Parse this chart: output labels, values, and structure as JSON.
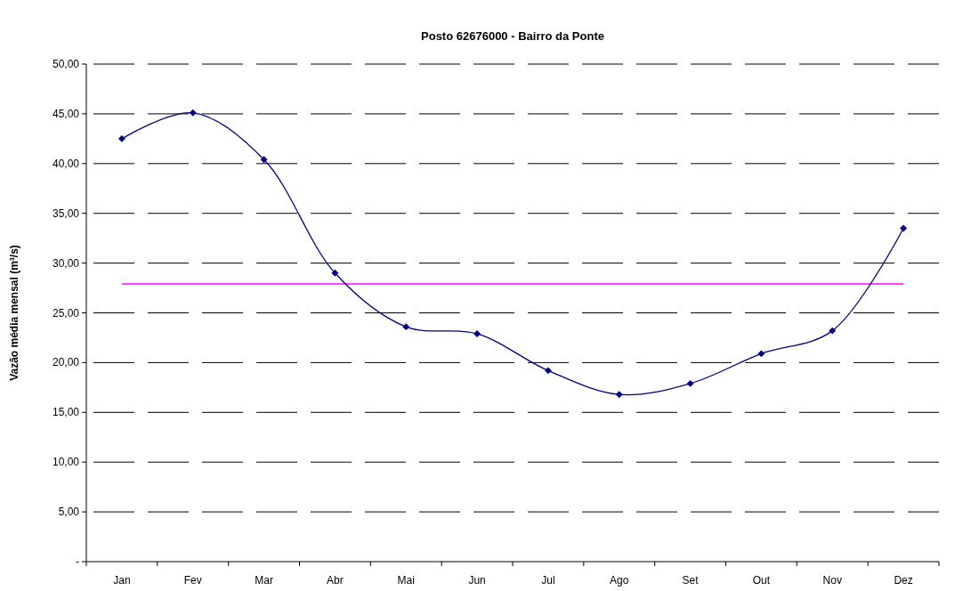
{
  "chart_data": {
    "type": "line",
    "title": "Posto 62676000 - Bairro da Ponte",
    "ylabel": "Vazão média mensal (m³/s)",
    "categories": [
      "Jan",
      "Fev",
      "Mar",
      "Abr",
      "Mai",
      "Jun",
      "Jul",
      "Ago",
      "Set",
      "Out",
      "Nov",
      "Dez"
    ],
    "series": [
      {
        "color": "#000080",
        "values": [
          42.5,
          45.1,
          40.4,
          29.0,
          23.6,
          22.9,
          19.2,
          16.8,
          17.9,
          20.9,
          23.2,
          33.5
        ]
      }
    ],
    "ylim": [
      0,
      50
    ],
    "yticks": [
      {
        "value": 0,
        "label": "-"
      },
      {
        "value": 5,
        "label": "5,00"
      },
      {
        "value": 10,
        "label": "10,00"
      },
      {
        "value": 15,
        "label": "15,00"
      },
      {
        "value": 20,
        "label": "20,00"
      },
      {
        "value": 25,
        "label": "25,00"
      },
      {
        "value": 30,
        "label": "30,00"
      },
      {
        "value": 35,
        "label": "35,00"
      },
      {
        "value": 40,
        "label": "40,00"
      },
      {
        "value": 45,
        "label": "45,00"
      },
      {
        "value": 50,
        "label": "50,00"
      }
    ],
    "ref_lines": [
      {
        "axis": "y",
        "value": 27.9,
        "color": "#ff00ff"
      }
    ],
    "grid": "y",
    "marker": "diamond",
    "line_style": "solid"
  }
}
